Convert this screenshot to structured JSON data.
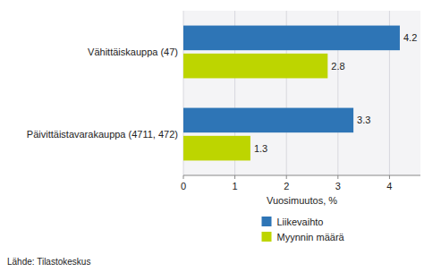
{
  "chart_data": {
    "type": "bar",
    "orientation": "horizontal",
    "categories": [
      "Päivittäistavarakauppa (4711, 472)",
      "Vähittäiskauppa (47)"
    ],
    "series": [
      {
        "name": "Liikevaihto",
        "color": "#2E75B6",
        "values": [
          3.3,
          4.2
        ]
      },
      {
        "name": "Myynnin määrä",
        "color": "#BDD500",
        "values": [
          1.3,
          2.8
        ]
      }
    ],
    "xlabel": "Vuosimuutos, %",
    "xlim": [
      0,
      4.6
    ],
    "xticks": [
      0,
      1,
      2,
      3,
      4
    ],
    "grid": true,
    "data_labels": true,
    "legend": "bottom",
    "annotations": [
      "Lähde: Tilastokeskus"
    ]
  }
}
